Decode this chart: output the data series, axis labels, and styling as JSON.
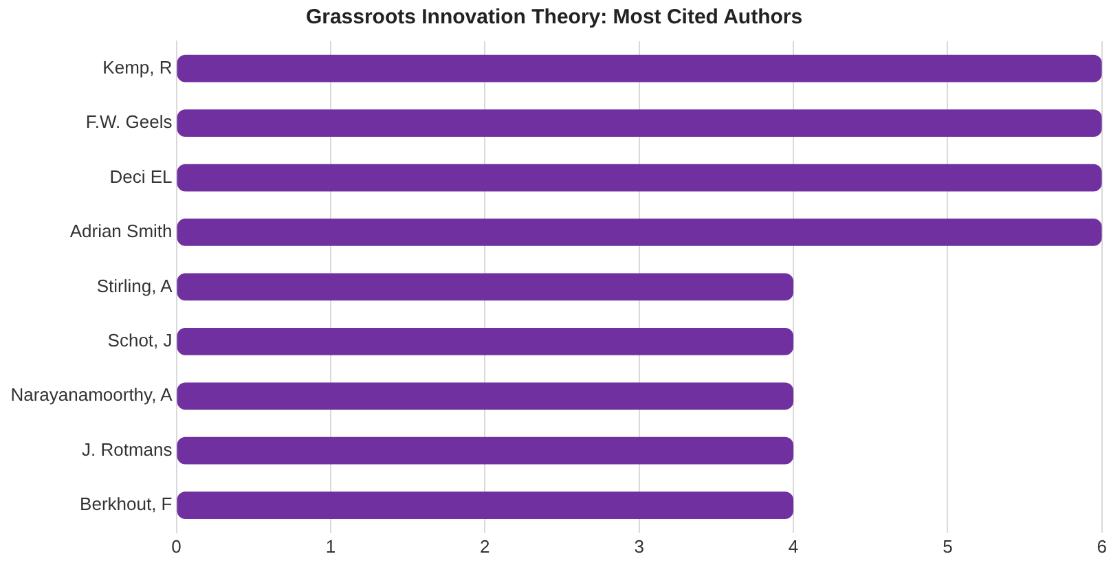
{
  "chart_data": {
    "type": "bar",
    "orientation": "horizontal",
    "title": "Grassroots Innovation Theory: Most Cited Authors",
    "categories": [
      "Kemp, R",
      "F.W. Geels",
      "Deci EL",
      "Adrian Smith",
      "Stirling, A",
      "Schot, J",
      "Narayanamoorthy, A",
      "J. Rotmans",
      "Berkhout, F"
    ],
    "values": [
      6,
      6,
      6,
      6,
      4,
      4,
      4,
      4,
      4
    ],
    "color": "#7030a0",
    "xlim": [
      0,
      6
    ],
    "xticks": [
      0,
      1,
      2,
      3,
      4,
      5,
      6
    ],
    "grid": "x"
  }
}
